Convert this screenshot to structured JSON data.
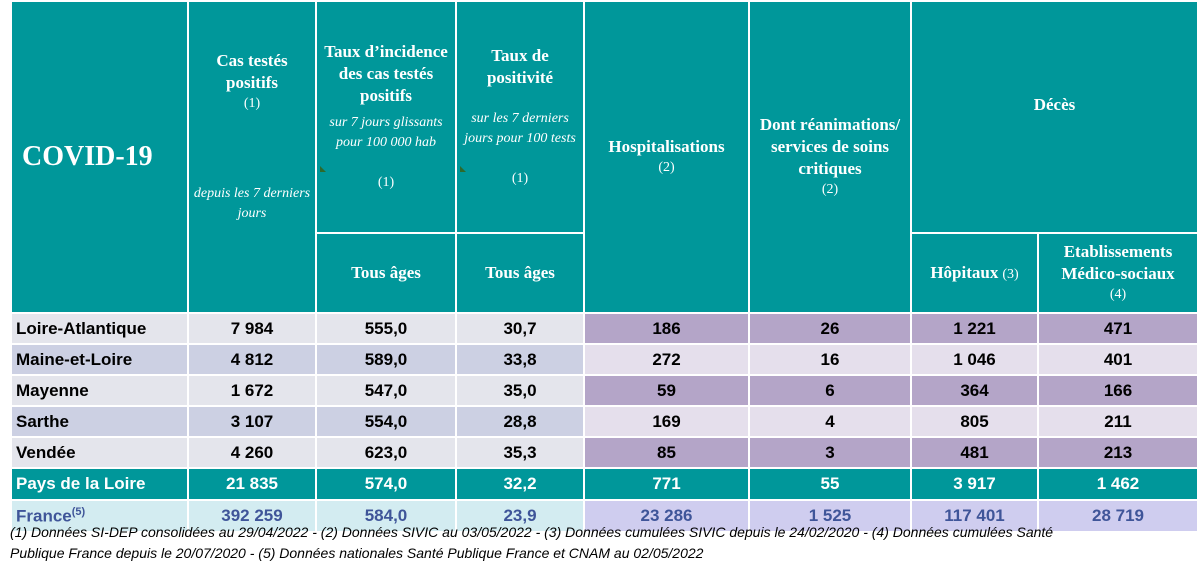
{
  "header": {
    "title": "COVID-19",
    "col_cas": {
      "title": "Cas testés positifs",
      "note": "(1)",
      "sub": "depuis les 7 derniers jours"
    },
    "col_incidence": {
      "title": "Taux d’incidence des cas testés positifs",
      "sub": "sur 7 jours glissants pour 100 000 hab",
      "note": "(1)",
      "age": "Tous âges"
    },
    "col_positivite": {
      "title": "Taux de positivité",
      "sub": "sur les 7 derniers jours pour 100 tests",
      "note": "(1)",
      "age": "Tous âges"
    },
    "col_hosp": {
      "title": "Hospitalisations",
      "note": "(2)"
    },
    "col_rea": {
      "title": "Dont réanimations/ services de soins critiques",
      "note": "(2)"
    },
    "col_deces": {
      "title": "Décès",
      "hopitaux": "Hôpitaux",
      "hopitaux_note": "(3)",
      "ems": "Etablissements Médico-sociaux",
      "ems_note": "(4)"
    }
  },
  "rows": [
    {
      "name": "Loire-Atlantique",
      "cas": "7 984",
      "incidence": "555,0",
      "positivite": "30,7",
      "hosp": "186",
      "rea": "26",
      "hopitaux": "1 221",
      "ems": "471"
    },
    {
      "name": "Maine-et-Loire",
      "cas": "4 812",
      "incidence": "589,0",
      "positivite": "33,8",
      "hosp": "272",
      "rea": "16",
      "hopitaux": "1 046",
      "ems": "401"
    },
    {
      "name": "Mayenne",
      "cas": "1 672",
      "incidence": "547,0",
      "positivite": "35,0",
      "hosp": "59",
      "rea": "6",
      "hopitaux": "364",
      "ems": "166"
    },
    {
      "name": "Sarthe",
      "cas": "3 107",
      "incidence": "554,0",
      "positivite": "28,8",
      "hosp": "169",
      "rea": "4",
      "hopitaux": "805",
      "ems": "211"
    },
    {
      "name": "Vendée",
      "cas": "4 260",
      "incidence": "623,0",
      "positivite": "35,3",
      "hosp": "85",
      "rea": "3",
      "hopitaux": "481",
      "ems": "213"
    }
  ],
  "total": {
    "name": "Pays de la Loire",
    "cas": "21 835",
    "incidence": "574,0",
    "positivite": "32,2",
    "hosp": "771",
    "rea": "55",
    "hopitaux": "3 917",
    "ems": "1 462"
  },
  "france": {
    "name": "France",
    "sup": "(5)",
    "cas": "392 259",
    "incidence": "584,0",
    "positivite": "23,9",
    "hosp": "23 286",
    "rea": "1 525",
    "hopitaux": "117 401",
    "ems": "28 719"
  },
  "footnote": {
    "line1": "(1) Données SI-DEP consolidées au 29/04/2022 -  (2) Données SIVIC au 03/05/2022 - (3) Données cumulées SIVIC depuis le 24/02/2020 - (4) Données cumulées Santé",
    "line2": "Publique France depuis le 20/07/2020 - (5) Données nationales Santé Publique France et CNAM au 02/05/2022"
  },
  "colors": {
    "teal": "#00979a",
    "purple_dark": "#b4a5c8",
    "purple_light": "#e5dfec",
    "france_text": "#3f5599"
  }
}
